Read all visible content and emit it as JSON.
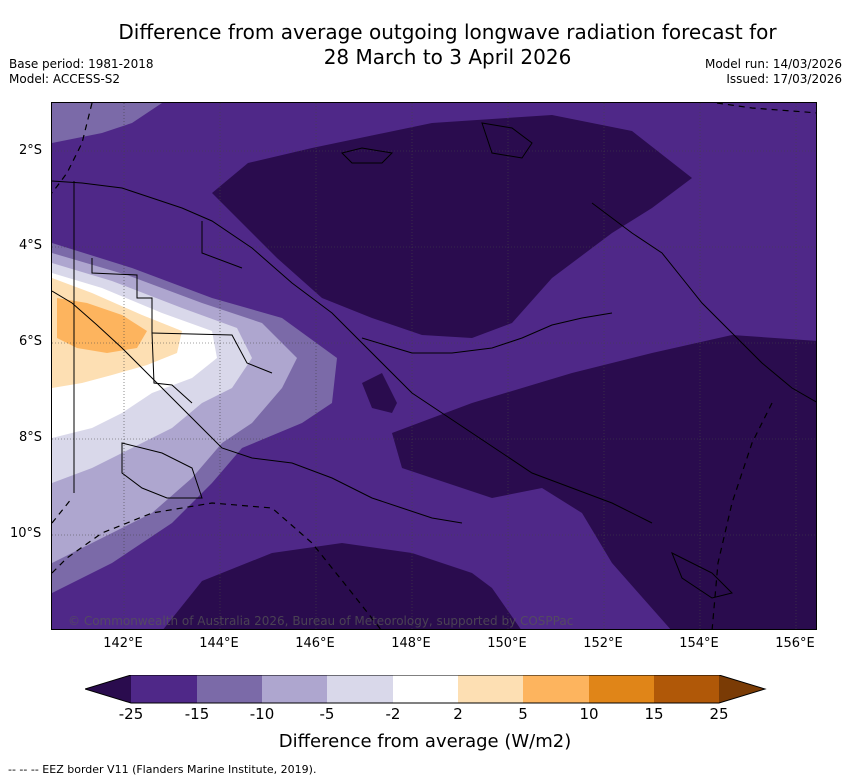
{
  "title": {
    "line1": "Difference from average outgoing longwave radiation forecast for",
    "line2": "28 March to 3 April 2026"
  },
  "meta_left": {
    "base_period": "Base period: 1981-2018",
    "model": "Model: ACCESS-S2"
  },
  "meta_right": {
    "model_run": "Model run: 14/03/2026",
    "issued": "Issued: 17/03/2026"
  },
  "map": {
    "lat_labels": [
      "2°S",
      "4°S",
      "6°S",
      "8°S",
      "10°S"
    ],
    "lon_labels": [
      "142°E",
      "144°E",
      "146°E",
      "148°E",
      "150°E",
      "152°E",
      "154°E",
      "156°E"
    ],
    "copyright": "© Commonwealth of Australia 2026, Bureau of Meteorology, supported by COSPPac"
  },
  "colorbar": {
    "title": "Difference from average (W/m2)",
    "tick_labels": [
      "-25",
      "-15",
      "-10",
      "-5",
      "-2",
      "2",
      "5",
      "10",
      "15",
      "25"
    ],
    "colors": {
      "lt_-25": "#2a0c4e",
      "-25_-15": "#4f2888",
      "-15_-10": "#7b6aa8",
      "-10_-5": "#aea6cf",
      "-5_-2": "#d9d8ea",
      "-2_2": "#ffffff",
      "2_5": "#fddfb3",
      "5_10": "#fdb45e",
      "10_15": "#e08518",
      "15_25": "#b05808",
      "gt_25": "#7a3b05"
    }
  },
  "footnote": "--  --  -- EEZ border V11 (Flanders Marine Institute, 2019)."
}
